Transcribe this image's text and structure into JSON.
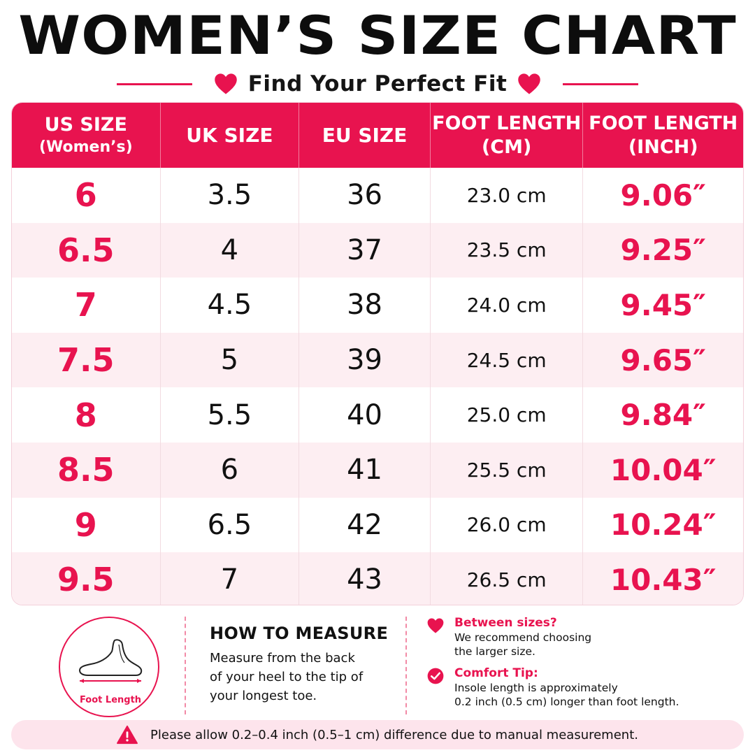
{
  "header": {
    "title": "WOMEN’S SIZE CHART",
    "subtitle": "Find Your Perfect Fit",
    "accent_color": "#e8134f"
  },
  "table": {
    "columns": [
      {
        "line1": "US SIZE",
        "line2": "(Women’s)"
      },
      {
        "line1": "UK SIZE",
        "line2": ""
      },
      {
        "line1": "EU SIZE",
        "line2": ""
      },
      {
        "line1": "FOOT LENGTH",
        "line2": "(CM)"
      },
      {
        "line1": "FOOT LENGTH",
        "line2": "(INCH)"
      }
    ],
    "rows": [
      {
        "us": "6",
        "uk": "3.5",
        "eu": "36",
        "cm": "23.0 cm",
        "inch": "9.06″"
      },
      {
        "us": "6.5",
        "uk": "4",
        "eu": "37",
        "cm": "23.5 cm",
        "inch": "9.25″"
      },
      {
        "us": "7",
        "uk": "4.5",
        "eu": "38",
        "cm": "24.0 cm",
        "inch": "9.45″"
      },
      {
        "us": "7.5",
        "uk": "5",
        "eu": "39",
        "cm": "24.5 cm",
        "inch": "9.65″"
      },
      {
        "us": "8",
        "uk": "5.5",
        "eu": "40",
        "cm": "25.0 cm",
        "inch": "9.84″"
      },
      {
        "us": "8.5",
        "uk": "6",
        "eu": "41",
        "cm": "25.5 cm",
        "inch": "10.04″"
      },
      {
        "us": "9",
        "uk": "6.5",
        "eu": "42",
        "cm": "26.0 cm",
        "inch": "10.24″"
      },
      {
        "us": "9.5",
        "uk": "7",
        "eu": "43",
        "cm": "26.5 cm",
        "inch": "10.43″"
      }
    ]
  },
  "foot_diagram": {
    "label": "Foot Length",
    "icon": "foot-icon"
  },
  "how_to_measure": {
    "title": "HOW TO MEASURE",
    "lines": [
      "Measure from the back",
      "of your heel to the tip of",
      "your longest toe."
    ]
  },
  "tips": [
    {
      "icon": "heart-icon",
      "title": "Between sizes?",
      "lines": [
        "We recommend choosing",
        "the larger size."
      ]
    },
    {
      "icon": "check-circle-icon",
      "title": "Comfort Tip:",
      "lines": [
        "Insole length is approximately",
        "0.2 inch (0.5 cm) longer than foot length."
      ]
    }
  ],
  "note": {
    "icon": "warning-icon",
    "text": "Please allow 0.2–0.4 inch (0.5–1 cm) difference due to manual measurement."
  }
}
